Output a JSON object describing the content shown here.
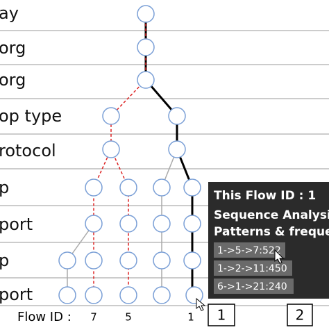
{
  "rows": [
    "ay",
    "org",
    "org",
    "op type",
    "rotocol",
    "p",
    "port",
    "p",
    "port"
  ],
  "flow_id": {
    "label": "Flow ID :",
    "values": [
      "7",
      "5",
      "1"
    ]
  },
  "tooltip": {
    "title": "This Flow ID : 1",
    "line1": "Sequence Analysi",
    "line2": "Patterns & freque",
    "items": [
      "1->5->7:522",
      "1->2->11:450",
      "6->1->21:240"
    ]
  },
  "pages": [
    "1",
    "2"
  ]
}
